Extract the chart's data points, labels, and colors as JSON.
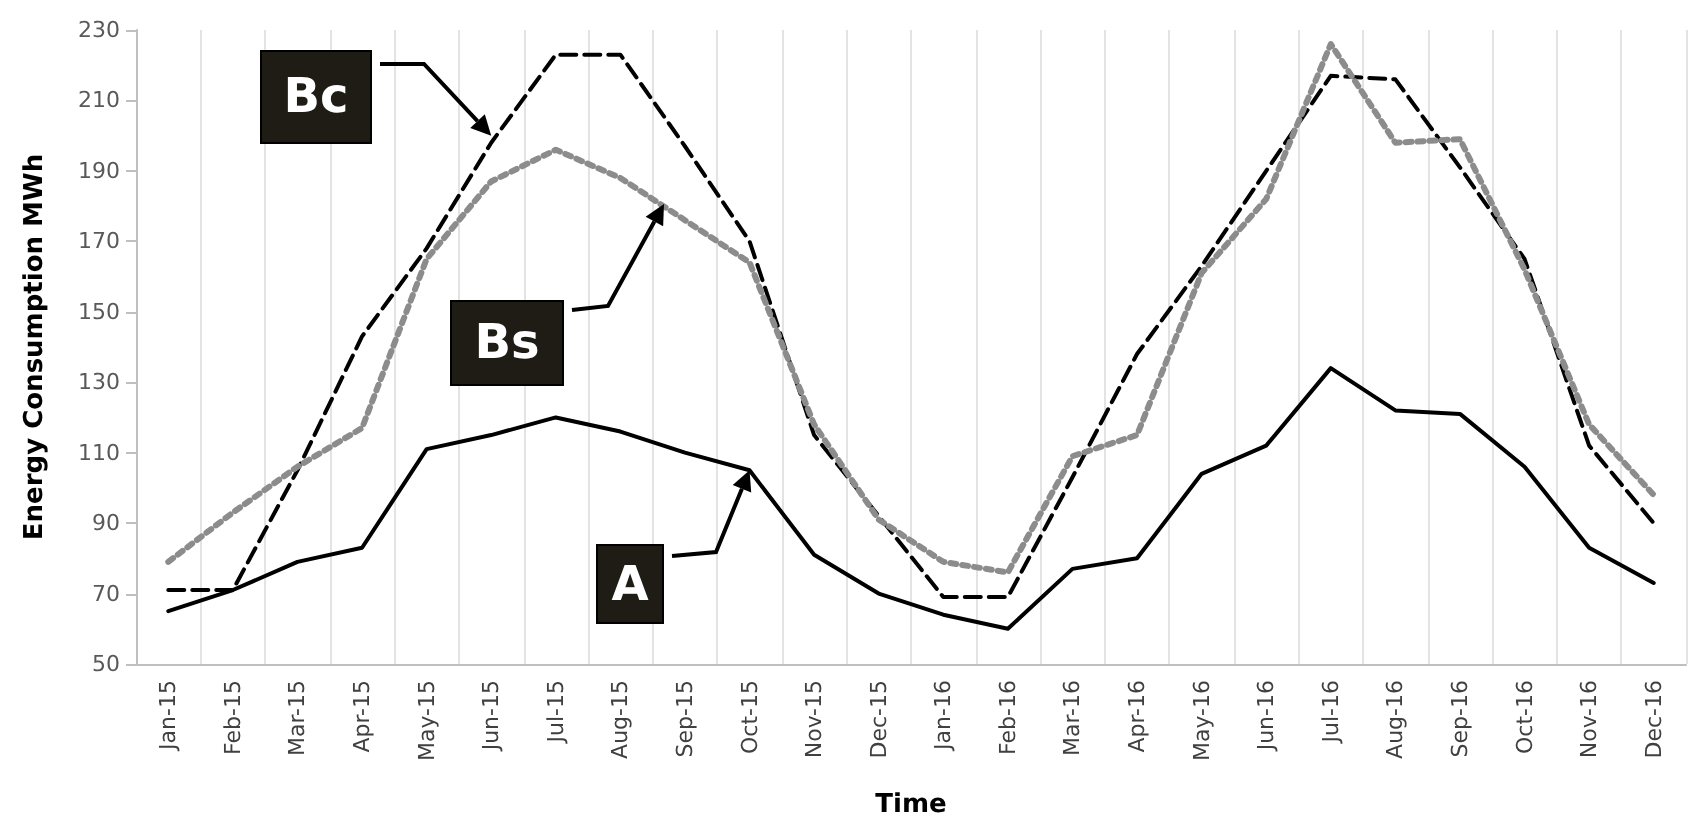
{
  "chart_data": {
    "type": "line",
    "xlabel": "Time",
    "ylabel": "Energy Consumption MWh",
    "categories": [
      "Jan-15",
      "Feb-15",
      "Mar-15",
      "Apr-15",
      "May-15",
      "Jun-15",
      "Jul-15",
      "Aug-15",
      "Sep-15",
      "Oct-15",
      "Nov-15",
      "Dec-15",
      "Jan-16",
      "Feb-16",
      "Mar-16",
      "Apr-16",
      "May-16",
      "Jun-16",
      "Jul-16",
      "Aug-16",
      "Sep-16",
      "Oct-16",
      "Nov-16",
      "Dec-16"
    ],
    "series": [
      {
        "color": "#000000",
        "line_style": "dashed",
        "values": [
          71,
          71,
          105,
          143,
          168,
          198,
          223,
          223,
          197,
          170,
          115,
          92,
          69,
          69,
          103,
          138,
          163,
          190,
          217,
          216,
          191,
          165,
          112,
          90
        ]
      },
      {
        "color": "#8c8c8c",
        "line_style": "dotted",
        "values": [
          79,
          93,
          106,
          117,
          165,
          187,
          196,
          188,
          176,
          164,
          118,
          91,
          79,
          76,
          109,
          115,
          161,
          182,
          226,
          198,
          199,
          162,
          118,
          98
        ]
      },
      {
        "color": "#000000",
        "line_style": "solid",
        "values": [
          65,
          71,
          79,
          83,
          111,
          115,
          120,
          116,
          110,
          105,
          81,
          70,
          64,
          60,
          77,
          80,
          104,
          112,
          134,
          122,
          121,
          106,
          83,
          73
        ]
      }
    ],
    "annotations": [
      {
        "text": "Bc",
        "x": "Jun-15",
        "y": 200
      },
      "Bs",
      {
        "text": "A",
        "x": "Oct-15",
        "y": 105
      }
    ],
    "ylim": [
      50,
      230
    ],
    "yticks": [
      50,
      70,
      90,
      110,
      130,
      150,
      170,
      190,
      210,
      230
    ],
    "grid": "x",
    "marker": "none"
  }
}
